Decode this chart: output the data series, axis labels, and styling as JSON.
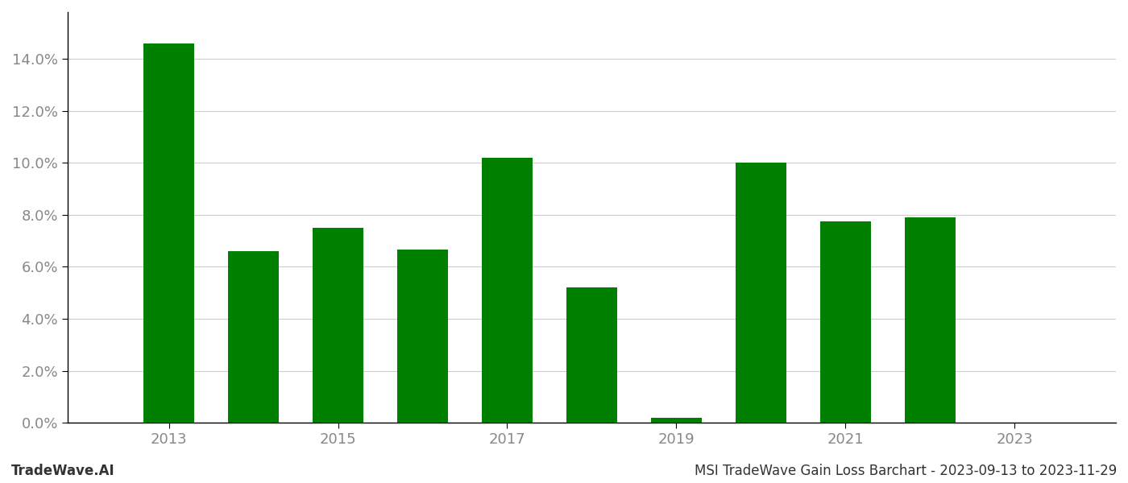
{
  "years": [
    2013,
    2014,
    2015,
    2016,
    2017,
    2018,
    2019,
    2020,
    2021,
    2022
  ],
  "values": [
    0.146,
    0.066,
    0.075,
    0.0665,
    0.102,
    0.052,
    0.002,
    0.1,
    0.0775,
    0.079
  ],
  "bar_color": "#008000",
  "background_color": "#ffffff",
  "grid_color": "#cccccc",
  "ylabel_color": "#888888",
  "xlabel_color": "#888888",
  "xtick_labels": [
    2013,
    2015,
    2017,
    2019,
    2021,
    2023
  ],
  "ytick_values": [
    0.0,
    0.02,
    0.04,
    0.06,
    0.08,
    0.1,
    0.12,
    0.14
  ],
  "ymax": 0.158,
  "ymin": 0.0,
  "title_text": "MSI TradeWave Gain Loss Barchart - 2023-09-13 to 2023-11-29",
  "watermark_text": "TradeWave.AI",
  "bar_width": 0.6,
  "xlim_left": 2011.8,
  "xlim_right": 2024.2
}
